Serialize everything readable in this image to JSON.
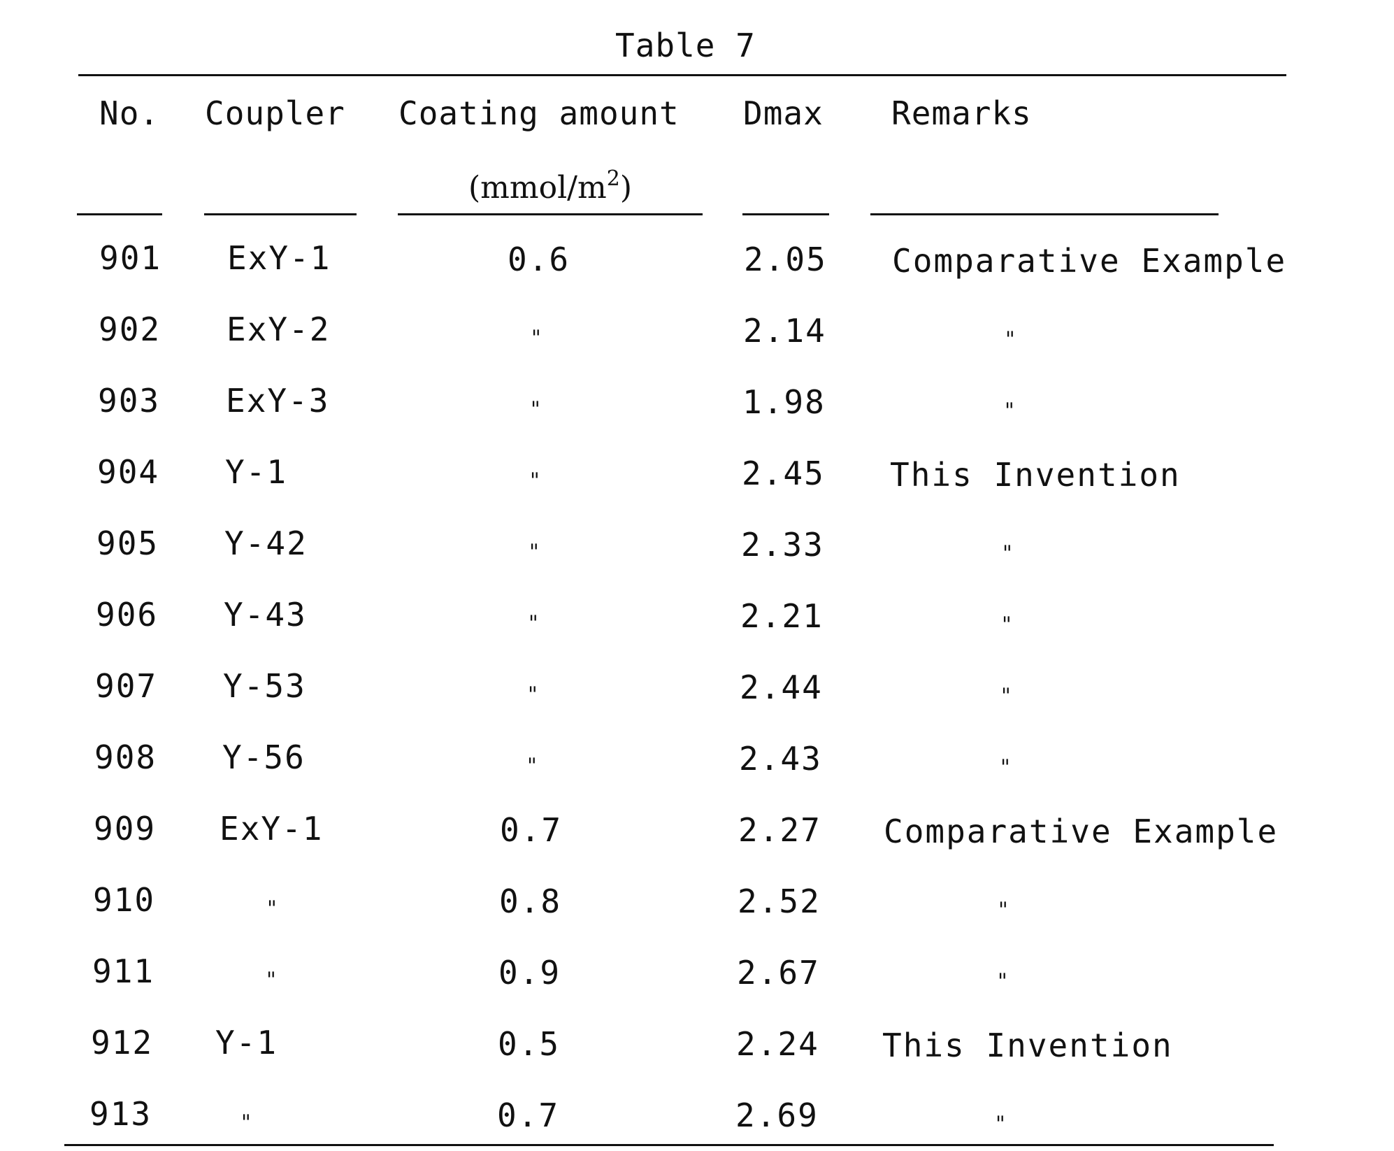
{
  "title": "Table 7",
  "headers": {
    "no": "No.",
    "coupler": "Coupler",
    "coating": "Coating amount",
    "coating_unit": "(mmol/m",
    "coating_unit_sup": "2",
    "coating_unit_close": ")",
    "dmax": "Dmax",
    "remarks": "Remarks"
  },
  "rows": [
    {
      "no": "901",
      "coupler": "ExY-1",
      "coating": "0.6",
      "dmax": "2.05",
      "remarks": "Comparative Example"
    },
    {
      "no": "902",
      "coupler": "ExY-2",
      "coating": "\"",
      "dmax": "2.14",
      "remarks": "\""
    },
    {
      "no": "903",
      "coupler": "ExY-3",
      "coating": "\"",
      "dmax": "1.98",
      "remarks": "\""
    },
    {
      "no": "904",
      "coupler": "Y-1",
      "coating": "\"",
      "dmax": "2.45",
      "remarks": "This Invention"
    },
    {
      "no": "905",
      "coupler": "Y-42",
      "coating": "\"",
      "dmax": "2.33",
      "remarks": "\""
    },
    {
      "no": "906",
      "coupler": "Y-43",
      "coating": "\"",
      "dmax": "2.21",
      "remarks": "\""
    },
    {
      "no": "907",
      "coupler": "Y-53",
      "coating": "\"",
      "dmax": "2.44",
      "remarks": "\""
    },
    {
      "no": "908",
      "coupler": "Y-56",
      "coating": "\"",
      "dmax": "2.43",
      "remarks": "\""
    },
    {
      "no": "909",
      "coupler": "ExY-1",
      "coating": "0.7",
      "dmax": "2.27",
      "remarks": "Comparative Example"
    },
    {
      "no": "910",
      "coupler": "\"",
      "coating": "0.8",
      "dmax": "2.52",
      "remarks": "\""
    },
    {
      "no": "911",
      "coupler": "\"",
      "coating": "0.9",
      "dmax": "2.67",
      "remarks": "\""
    },
    {
      "no": "912",
      "coupler": "Y-1",
      "coating": "0.5",
      "dmax": "2.24",
      "remarks": "This Invention"
    },
    {
      "no": "913",
      "coupler": "\"",
      "coating": "0.7",
      "dmax": "2.69",
      "remarks": "\""
    }
  ]
}
